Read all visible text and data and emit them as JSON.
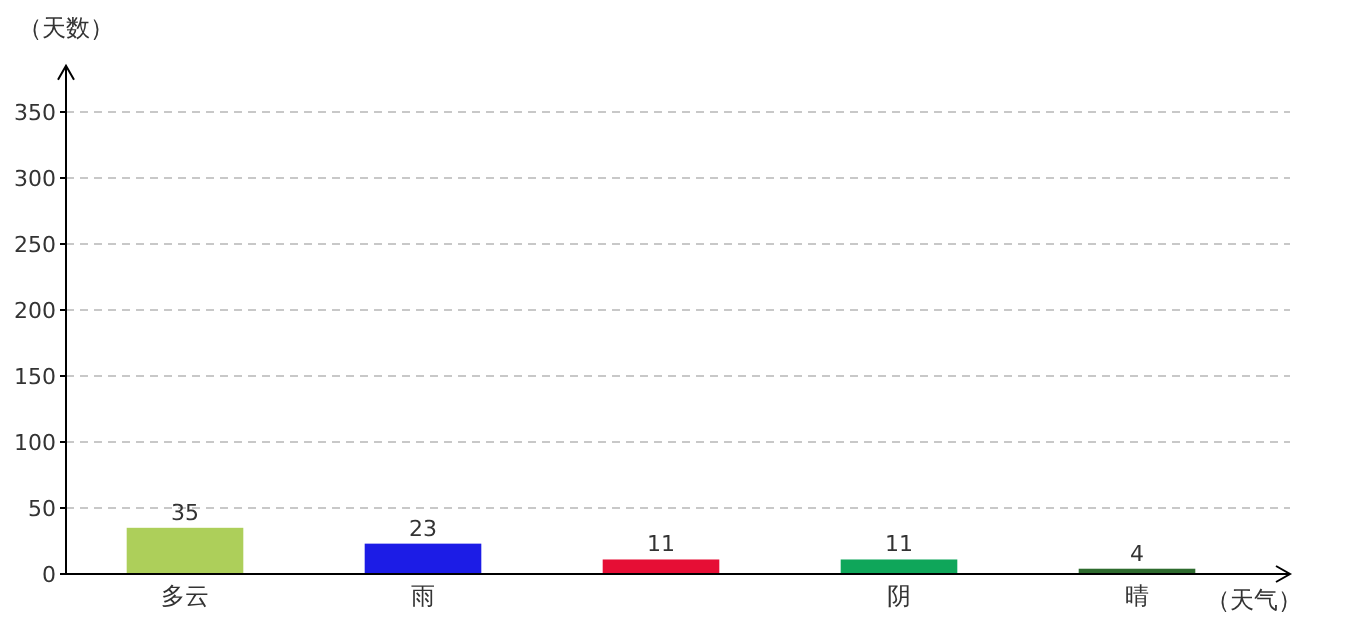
{
  "chart_data": {
    "type": "bar",
    "xlabel": "（天气）",
    "ylabel": "（天数）",
    "categories": [
      "多云",
      "雨",
      null,
      "阴",
      "晴"
    ],
    "values": [
      35,
      23,
      11,
      11,
      4
    ],
    "colors": [
      "#adcf5a",
      "#1c1ce6",
      "#e60e35",
      "#0fa65a",
      "#2e6b2e"
    ],
    "ylim": [
      0,
      385
    ],
    "yticks": [
      0,
      50,
      100,
      150,
      200,
      250,
      300,
      350
    ],
    "grid": "y",
    "data_labels": true
  }
}
